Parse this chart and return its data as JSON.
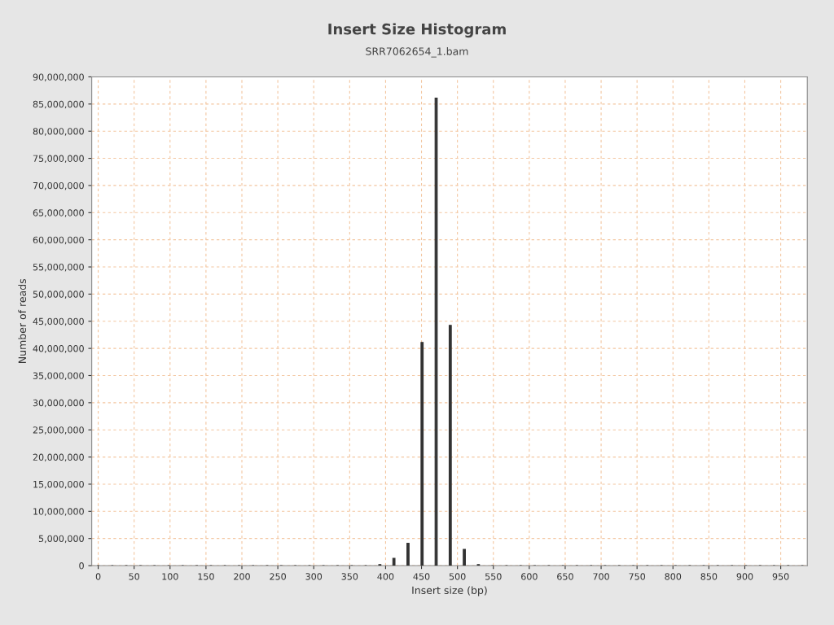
{
  "chart_data": {
    "type": "bar",
    "title": "Insert Size Histogram",
    "subtitle": "SRR7062654_1.bam",
    "xlabel": "Insert size (bp)",
    "ylabel": "Number of reads",
    "x": [
      0,
      19.6,
      39.2,
      58.8,
      78.4,
      98,
      117.6,
      137.2,
      156.8,
      176.4,
      196,
      215.6,
      235.2,
      254.8,
      274.4,
      294,
      313.6,
      333.2,
      352.8,
      372.4,
      392,
      411.6,
      431.2,
      450.8,
      470.4,
      490,
      509.6,
      529.2,
      548.8,
      568.4,
      588,
      607.6,
      627.2,
      646.8,
      666.4,
      686,
      705.6,
      725.2,
      744.8,
      764.4,
      784,
      803.6,
      823.2,
      842.8,
      862.4,
      882,
      901.6,
      921.2,
      940.8,
      960.4,
      980
    ],
    "values": [
      0,
      0,
      0,
      0,
      0,
      0,
      0,
      0,
      0,
      0,
      0,
      0,
      0,
      0,
      0,
      0,
      0,
      0,
      0,
      0,
      200000,
      1350000,
      4100000,
      41100000,
      86100000,
      44250000,
      3000000,
      200000,
      0,
      0,
      0,
      0,
      0,
      0,
      0,
      0,
      0,
      0,
      0,
      0,
      0,
      0,
      0,
      0,
      0,
      0,
      0,
      0,
      0,
      0,
      0
    ],
    "color": "#333333",
    "xlim": [
      -9,
      987
    ],
    "xticks": [
      0,
      50,
      100,
      150,
      200,
      250,
      300,
      350,
      400,
      450,
      500,
      550,
      600,
      650,
      700,
      750,
      800,
      850,
      900,
      950
    ],
    "ylim": [
      0,
      90000000
    ],
    "yticks": [
      {
        "value": 0,
        "label": "0"
      },
      {
        "value": 5000000,
        "label": "5,000,000"
      },
      {
        "value": 10000000,
        "label": "10,000,000"
      },
      {
        "value": 15000000,
        "label": "15,000,000"
      },
      {
        "value": 20000000,
        "label": "20,000,000"
      },
      {
        "value": 25000000,
        "label": "25,000,000"
      },
      {
        "value": 30000000,
        "label": "30,000,000"
      },
      {
        "value": 35000000,
        "label": "35,000,000"
      },
      {
        "value": 40000000,
        "label": "40,000,000"
      },
      {
        "value": 45000000,
        "label": "45,000,000"
      },
      {
        "value": 50000000,
        "label": "50,000,000"
      },
      {
        "value": 55000000,
        "label": "55,000,000"
      },
      {
        "value": 60000000,
        "label": "60,000,000"
      },
      {
        "value": 65000000,
        "label": "65,000,000"
      },
      {
        "value": 70000000,
        "label": "70,000,000"
      },
      {
        "value": 75000000,
        "label": "75,000,000"
      },
      {
        "value": 80000000,
        "label": "80,000,000"
      },
      {
        "value": 85000000,
        "label": "85,000,000"
      },
      {
        "value": 90000000,
        "label": "90,000,000"
      }
    ],
    "grid": true
  }
}
